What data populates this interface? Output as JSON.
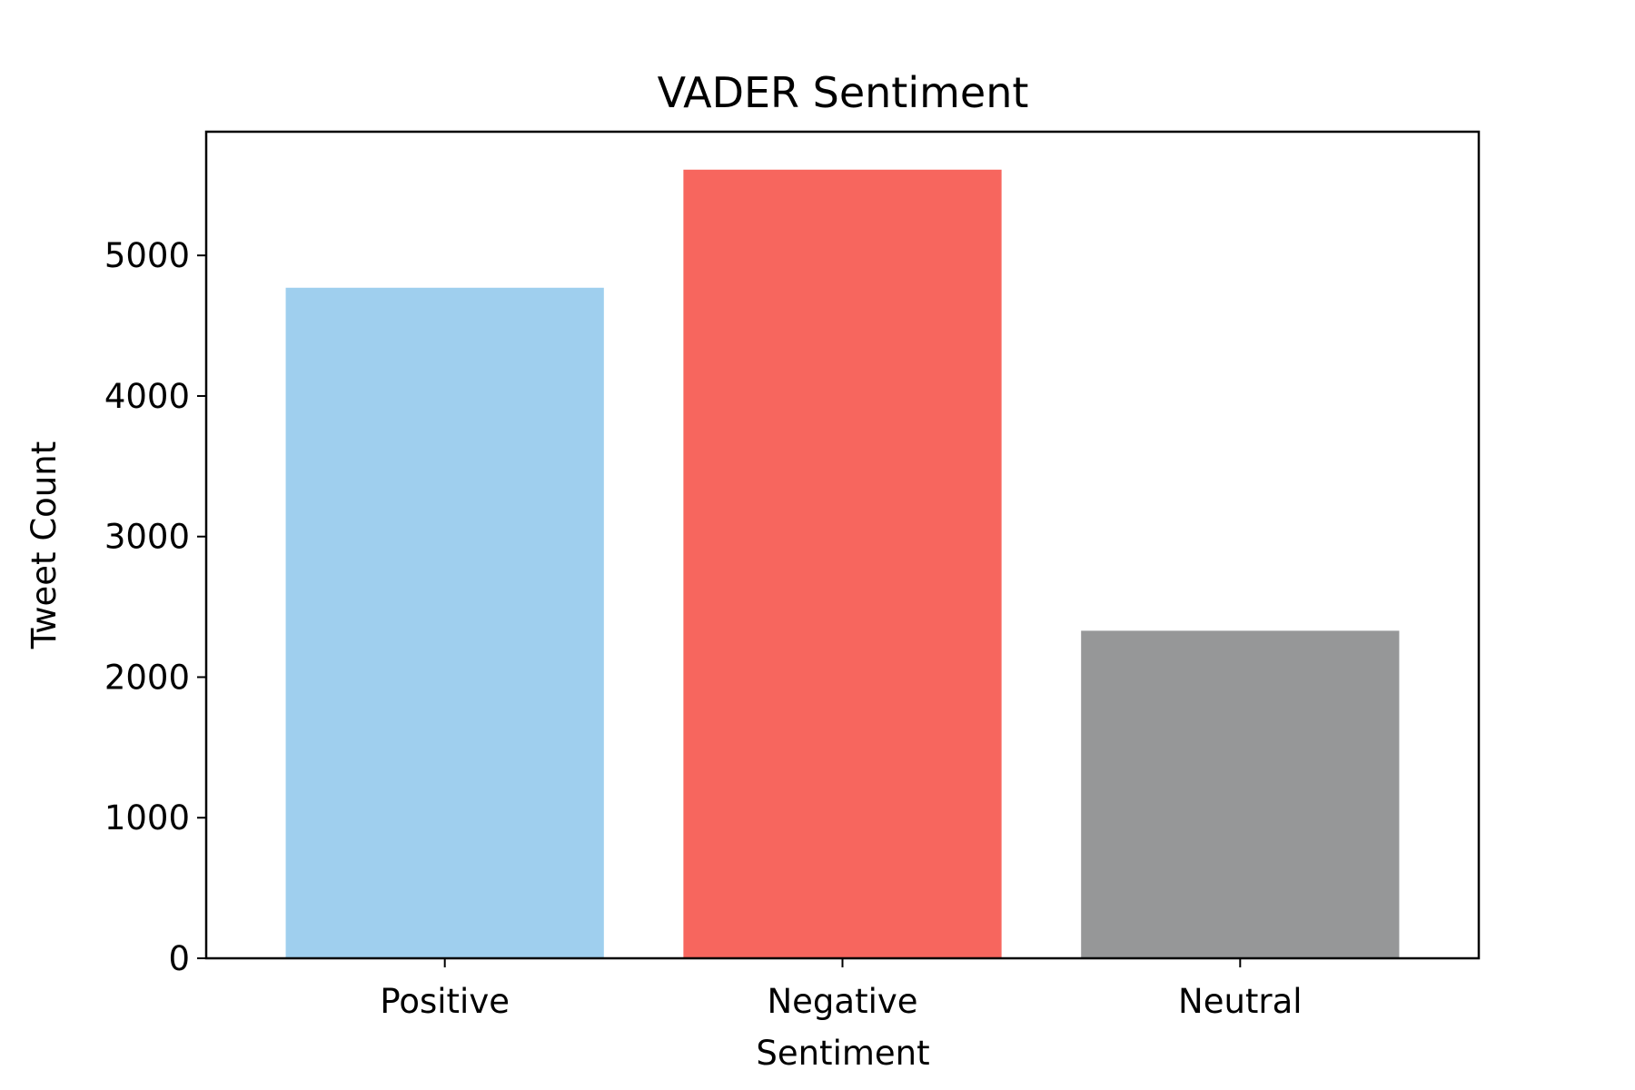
{
  "chart_data": {
    "type": "bar",
    "title": "VADER Sentiment",
    "xlabel": "Sentiment",
    "ylabel": "Tweet Count",
    "categories": [
      "Positive",
      "Negative",
      "Neutral"
    ],
    "values": [
      4770,
      5610,
      2330
    ],
    "colors": [
      "#9fcfee",
      "#f7665e",
      "#969798"
    ],
    "ylim": [
      0,
      5880
    ],
    "yticks": [
      0,
      1000,
      2000,
      3000,
      4000,
      5000
    ],
    "grid": false,
    "legend": "none"
  }
}
